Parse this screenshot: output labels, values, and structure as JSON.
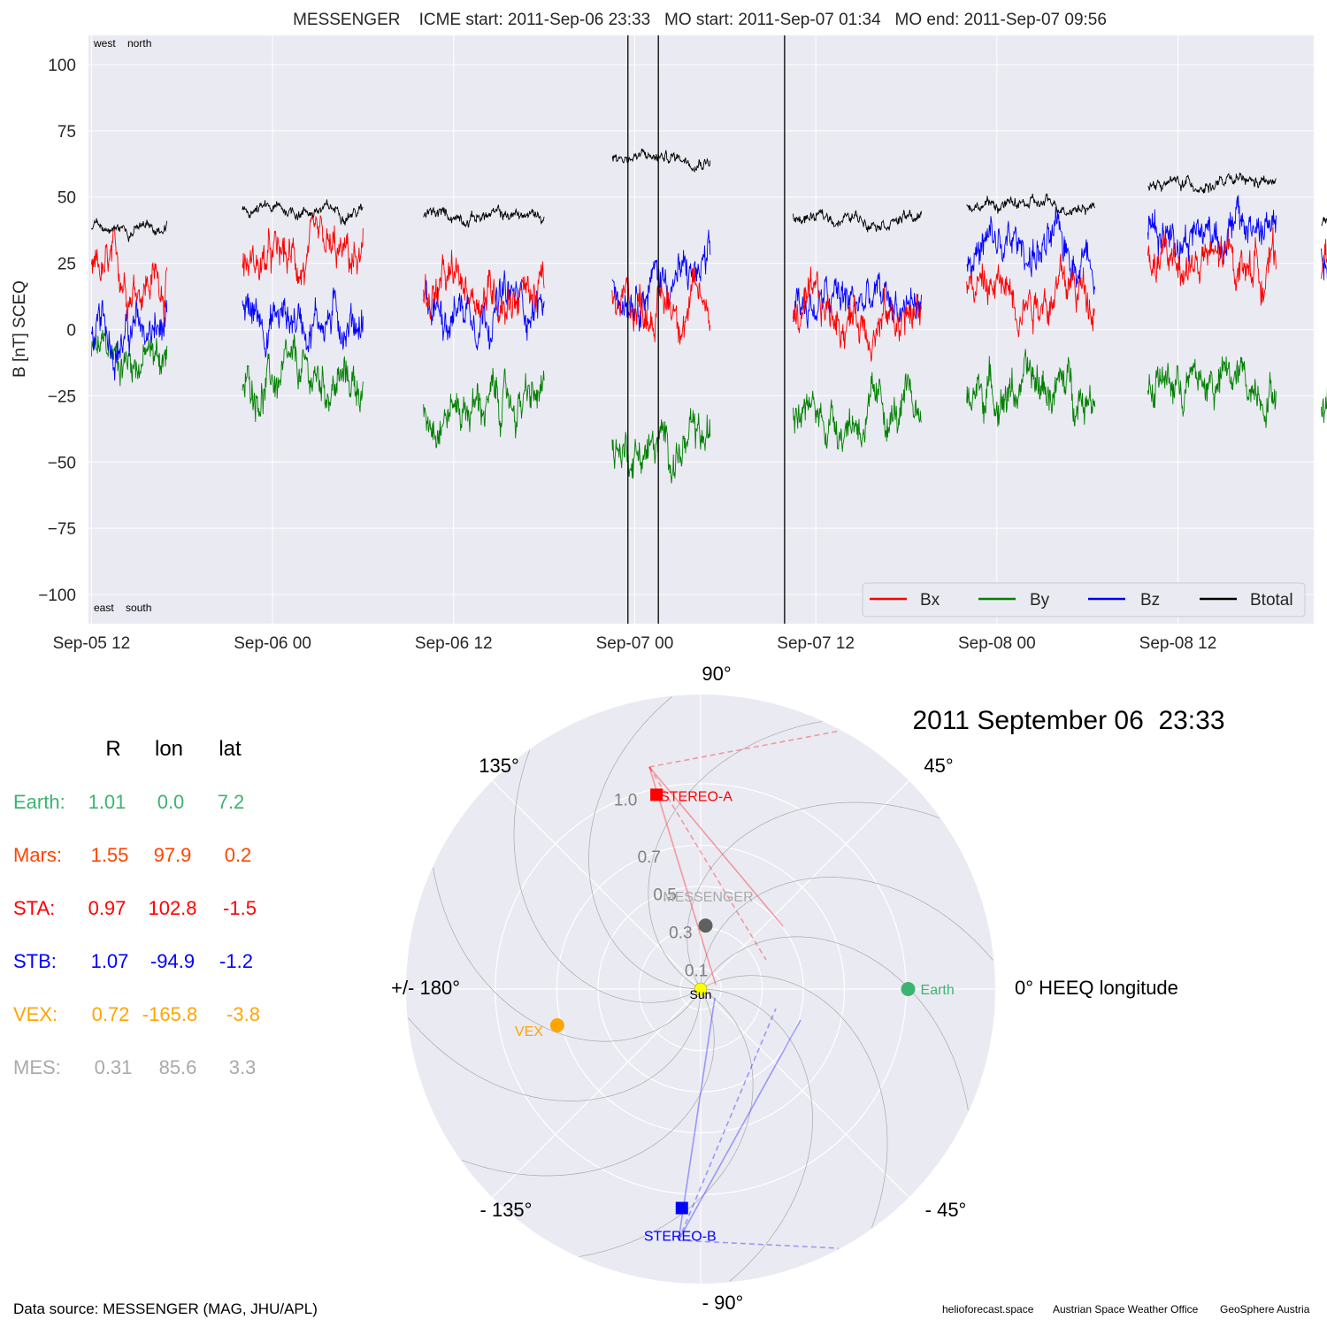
{
  "figure": {
    "title": "MESSENGER    ICME start: 2011-Sep-06 23:33   MO start: 2011-Sep-07 01:34   MO end: 2011-Sep-07 09:56",
    "date_label": "2011 September 06  23:33",
    "footer_left": "Data source: MESSENGER (MAG, JHU/APL)",
    "credits": [
      "helioforecast.space",
      "Austrian Space Weather Office",
      "GeoSphere Austria"
    ]
  },
  "colors": {
    "Bx": "#ff0000",
    "By": "#008000",
    "Bz": "#0000ff",
    "Btotal": "#000000",
    "Earth": "#3cb371",
    "Mars": "#ff4500",
    "STA": "#ff0000",
    "STB": "#0000ff",
    "VEX": "#ffa500",
    "MES": "#aaaaaa",
    "MES_marker": "#606060",
    "Sun": "#ffff00",
    "axes_bg": "#eaeaf2",
    "grid": "#ffffff"
  },
  "chart_data": [
    {
      "type": "line",
      "title": "MESSENGER    ICME start: 2011-Sep-06 23:33   MO start: 2011-Sep-07 01:34   MO end: 2011-Sep-07 09:56",
      "xlabel": "",
      "ylabel": "B [nT] SCEQ",
      "x_axis": "time (hours since 2011-Sep-05 00:00)",
      "xlim": [
        11.8,
        93.0
      ],
      "ylim": [
        -111,
        111
      ],
      "yticks": [
        -100,
        -75,
        -50,
        -25,
        0,
        25,
        50,
        75,
        100
      ],
      "ytick_labels": [
        "−100",
        "−75",
        "−50",
        "−25",
        "0",
        "25",
        "50",
        "75",
        "100"
      ],
      "xtick_labels": [
        "Sep-05 12",
        "Sep-06 00",
        "Sep-06 12",
        "Sep-07 00",
        "Sep-07 12",
        "Sep-08 00",
        "Sep-08 12"
      ],
      "xtick_hours": [
        12,
        24,
        36,
        48,
        60,
        72,
        84
      ],
      "grid": true,
      "legend": {
        "placement": "bottom-right",
        "entries": [
          "Bx",
          "By",
          "Bz",
          "Btotal"
        ]
      },
      "annotations": {
        "top_left": "west    north",
        "bottom_left": "east    south"
      },
      "event_lines": [
        {
          "name": "ICME start",
          "time": "2011-09-06 23:33"
        },
        {
          "name": "MO start",
          "time": "2011-09-07 01:34"
        },
        {
          "name": "MO end",
          "time": "2011-09-07 09:56"
        }
      ],
      "segments": [
        {
          "start": "2011-09-05 12:00",
          "end": "2011-09-05 17:00",
          "Bx": 20,
          "By": -10,
          "Bz": -2,
          "Btotal": 38
        },
        {
          "start": "2011-09-05 22:00",
          "end": "2011-09-06 06:00",
          "Bx": 25,
          "By": -20,
          "Bz": 5,
          "Btotal": 45
        },
        {
          "start": "2011-09-06 10:00",
          "end": "2011-09-06 18:00",
          "Bx": 15,
          "By": -28,
          "Bz": 10,
          "Btotal": 43
        },
        {
          "start": "2011-09-06 22:30",
          "end": "2011-09-07 05:00",
          "Bx": 10,
          "By": -45,
          "Bz": 20,
          "Btotal": 65
        },
        {
          "start": "2011-09-07 10:30",
          "end": "2011-09-07 19:00",
          "Bx": 5,
          "By": -33,
          "Bz": 10,
          "Btotal": 42
        },
        {
          "start": "2011-09-07 22:00",
          "end": "2011-09-08 06:30",
          "Bx": 15,
          "By": -22,
          "Bz": 30,
          "Btotal": 47
        },
        {
          "start": "2011-09-08 10:00",
          "end": "2011-09-08 18:30",
          "Bx": 25,
          "By": -20,
          "Bz": 38,
          "Btotal": 55
        },
        {
          "start": "2011-09-08 21:30",
          "end": "2011-09-08 22:00",
          "Bx": 25,
          "By": -30,
          "Bz": 25,
          "Btotal": 40
        }
      ]
    },
    {
      "type": "scatter",
      "subtype": "polar",
      "title": "2011 September 06  23:33",
      "radial_axis": "R [AU]",
      "radial_ticks": [
        "0.1",
        "0.3",
        "0.5",
        "0.7",
        "1.0"
      ],
      "angle_labels": [
        "90°",
        "45°",
        "0° HEEQ longitude",
        "- 45°",
        "- 90°",
        "- 135°",
        "+/- 180°",
        "135°"
      ],
      "table_headers": [
        "R",
        "lon",
        "lat"
      ],
      "bodies": [
        {
          "name": "Earth",
          "row_label": "Earth:",
          "marker_label": "Earth",
          "R": "1.01",
          "lon": "0.0",
          "lat": "7.2",
          "marker": "circle"
        },
        {
          "name": "Mars",
          "row_label": "Mars:",
          "R": "1.55",
          "lon": "97.9",
          "lat": "0.2"
        },
        {
          "name": "STA",
          "row_label": "STA:",
          "marker_label": "STEREO-A",
          "R": "0.97",
          "lon": "102.8",
          "lat": "-1.5",
          "marker": "square"
        },
        {
          "name": "STB",
          "row_label": "STB:",
          "marker_label": "STEREO-B",
          "R": "1.07",
          "lon": "-94.9",
          "lat": "-1.2",
          "marker": "square"
        },
        {
          "name": "VEX",
          "row_label": "VEX:",
          "marker_label": "VEX",
          "R": "0.72",
          "lon": "-165.8",
          "lat": "-3.8",
          "marker": "circle"
        },
        {
          "name": "MES",
          "row_label": "MES:",
          "marker_label": "MESSENGER",
          "R": "0.31",
          "lon": "85.6",
          "lat": "3.3",
          "marker": "circle"
        }
      ],
      "sun_label": "Sun"
    }
  ]
}
